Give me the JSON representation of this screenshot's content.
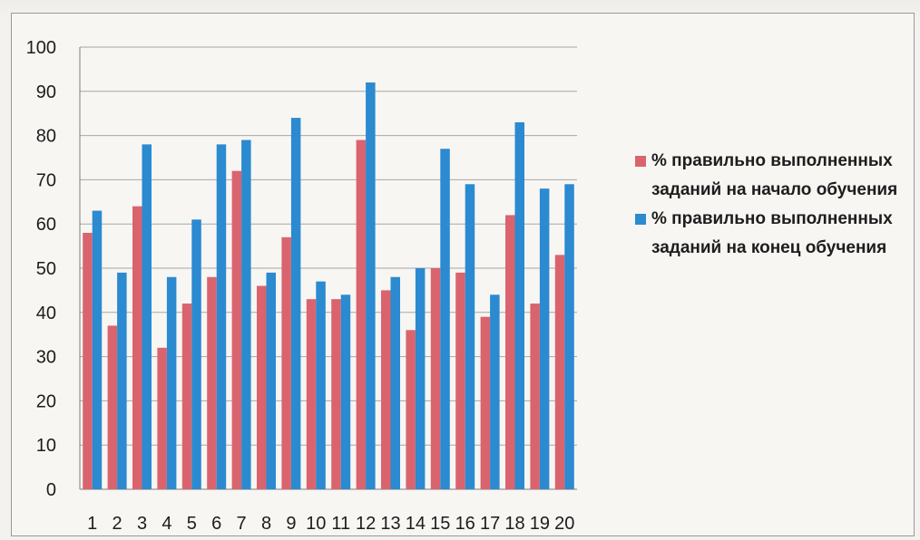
{
  "chart_data": {
    "type": "bar",
    "categories": [
      "1",
      "2",
      "3",
      "4",
      "5",
      "6",
      "7",
      "8",
      "9",
      "10",
      "11",
      "12",
      "13",
      "14",
      "15",
      "16",
      "17",
      "18",
      "19",
      "20"
    ],
    "series": [
      {
        "name": "% правильно выполненных заданий на начало обучения",
        "color": "#d9646e",
        "values": [
          58,
          37,
          64,
          32,
          42,
          48,
          72,
          46,
          57,
          43,
          43,
          79,
          45,
          36,
          50,
          49,
          39,
          62,
          42,
          53
        ]
      },
      {
        "name": "% правильно выполненных заданий на конец обучения",
        "color": "#2b8ad0",
        "values": [
          63,
          49,
          78,
          48,
          61,
          78,
          79,
          49,
          84,
          47,
          44,
          92,
          48,
          50,
          77,
          69,
          44,
          83,
          68,
          69
        ]
      }
    ],
    "ylim": [
      0,
      100
    ],
    "yticks": [
      0,
      10,
      20,
      30,
      40,
      50,
      60,
      70,
      80,
      90,
      100
    ],
    "grid": true,
    "legend_position": "right",
    "title": "",
    "xlabel": "",
    "ylabel": ""
  }
}
